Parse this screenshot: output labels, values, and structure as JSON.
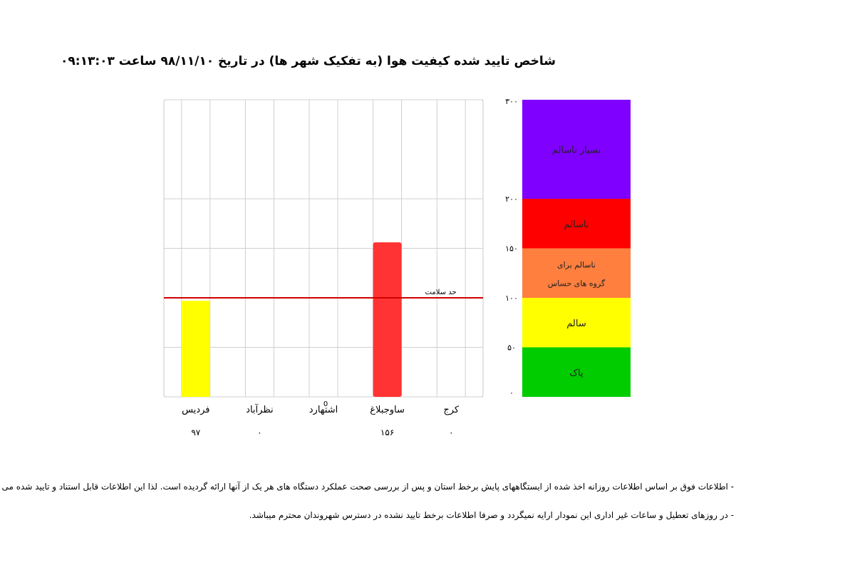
{
  "page": {
    "title": "شاخص تایید شده کیفیت هوا (به تفکیک شهر ها) در تاریخ ۹۸/۱۱/۱۰   ساعت ۰۹:۱۳:۰۳",
    "notes": [
      "- اطلاعات فوق بر اساس اطلاعات روزانه اخذ شده از ایستگاههای پایش برخط استان و پس از بررسی صحت عملکرد دستگاه های هر یک از آنها ارائه گردیده است. لذا این اطلاعات قابل استناد و تایید شده می باشد.",
      "- در روزهای تعطیل و ساعات غیر اداری این نمودار ارایه نمیگردد و صرفا اطلاعات برخط تایید نشده در دسترس شهروندان محترم میباشد."
    ]
  },
  "chart_data": {
    "type": "bar",
    "categories": [
      "فردیس",
      "نظرآباد",
      "اشتهارد",
      "ساوجبلاغ",
      "کرج"
    ],
    "values": [
      97,
      0,
      0,
      156,
      0
    ],
    "value_labels": [
      "۹۷",
      "۰",
      "",
      "۱۵۶",
      "۰"
    ],
    "extra_labels": [
      {
        "category_index": 2,
        "text": "0"
      }
    ],
    "ylim": [
      0,
      300
    ],
    "grid_y": [
      0,
      50,
      100,
      150,
      200,
      300
    ],
    "grid": true,
    "reference_line": {
      "value": 100,
      "label": "حد سلامت",
      "color": "#d00000"
    },
    "bar_colors": [
      "#ffff00",
      "#ffff00",
      "#ffff00",
      "#ff3333",
      "#ffff00"
    ],
    "scale": {
      "ticks": [
        {
          "value": 300,
          "label": "۳۰۰"
        },
        {
          "value": 200,
          "label": "۲۰۰"
        },
        {
          "value": 150,
          "label": "۱۵۰"
        },
        {
          "value": 100,
          "label": "۱۰۰"
        },
        {
          "value": 50,
          "label": "۵۰"
        },
        {
          "value": 0,
          "label": "۰"
        }
      ],
      "bands": [
        {
          "from": 200,
          "to": 300,
          "color": "#7f00ff",
          "labels": [
            "بسیار ناسالم"
          ]
        },
        {
          "from": 150,
          "to": 200,
          "color": "#ff0000",
          "labels": [
            "ناسالم"
          ]
        },
        {
          "from": 100,
          "to": 150,
          "color": "#ff7f3f",
          "labels": [
            "ناسالم برای",
            "گروه های حساس"
          ]
        },
        {
          "from": 50,
          "to": 100,
          "color": "#ffff00",
          "labels": [
            "سالم"
          ]
        },
        {
          "from": 0,
          "to": 50,
          "color": "#00cc00",
          "labels": [
            "پاک"
          ]
        }
      ]
    }
  }
}
